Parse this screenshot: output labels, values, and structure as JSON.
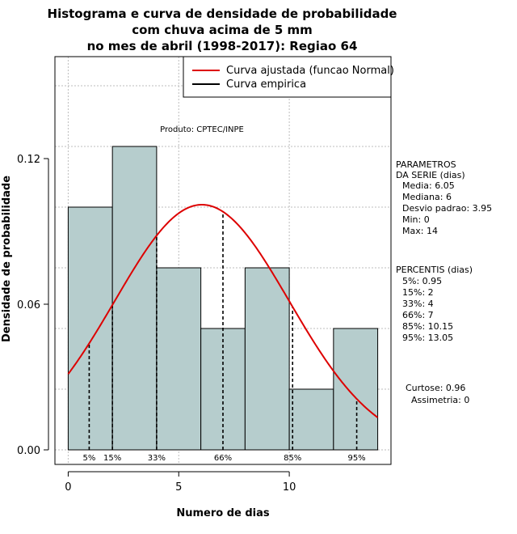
{
  "chart_data": {
    "type": "bar",
    "title_lines": [
      "Histograma e curva de densidade de probabilidade",
      "com chuva acima de 5 mm",
      "no mes de abril (1998-2017): Regiao 64"
    ],
    "xlabel": "Numero de dias",
    "ylabel": "Densidade de probabilidade",
    "xlim": [
      -0.6,
      14.6
    ],
    "ylim": [
      -0.006,
      0.162
    ],
    "x_ticks": [
      0,
      5,
      10
    ],
    "y_ticks": [
      0.0,
      0.06,
      0.12
    ],
    "y_tick_labels": [
      "0.00",
      "0.06",
      "0.12"
    ],
    "bins": [
      {
        "from": 0,
        "to": 2,
        "density": 0.1
      },
      {
        "from": 2,
        "to": 4,
        "density": 0.125
      },
      {
        "from": 4,
        "to": 6,
        "density": 0.075
      },
      {
        "from": 6,
        "to": 8,
        "density": 0.05
      },
      {
        "from": 8,
        "to": 10,
        "density": 0.075
      },
      {
        "from": 10,
        "to": 12,
        "density": 0.025
      },
      {
        "from": 12,
        "to": 14,
        "density": 0.05
      }
    ],
    "bar_color": "#b6cdcd",
    "curve_color": "#dd0000",
    "normal": {
      "mean": 6.05,
      "sd": 3.95,
      "range": [
        0,
        14
      ]
    },
    "percentiles": [
      {
        "label": "5%",
        "x": 0.95
      },
      {
        "label": "15%",
        "x": 2
      },
      {
        "label": "33%",
        "x": 4
      },
      {
        "label": "66%",
        "x": 7
      },
      {
        "label": "85%",
        "x": 10.15
      },
      {
        "label": "95%",
        "x": 13.05
      }
    ],
    "legend": [
      {
        "label": "Curva ajustada (funcao Normal)",
        "color": "#dd0000"
      },
      {
        "label": "Curva empirica",
        "color": "#000000"
      }
    ],
    "legend_position": "top-right",
    "annotation": "Produto: CPTEC/INPE",
    "grid": true
  },
  "side_panel": {
    "parametros": [
      "PARAMETROS",
      "DA SERIE (dias)",
      "Media: 6.05",
      "Mediana: 6",
      "Desvio padrao: 3.95",
      "Min: 0",
      "Max: 14"
    ],
    "percentis": [
      "PERCENTIS (dias)",
      "5%: 0.95",
      "15%: 2",
      "33%: 4",
      "66%: 7",
      "85%: 10.15",
      "95%: 13.05"
    ],
    "extra": [
      "Curtose: 0.96",
      "Assimetria: 0"
    ]
  }
}
